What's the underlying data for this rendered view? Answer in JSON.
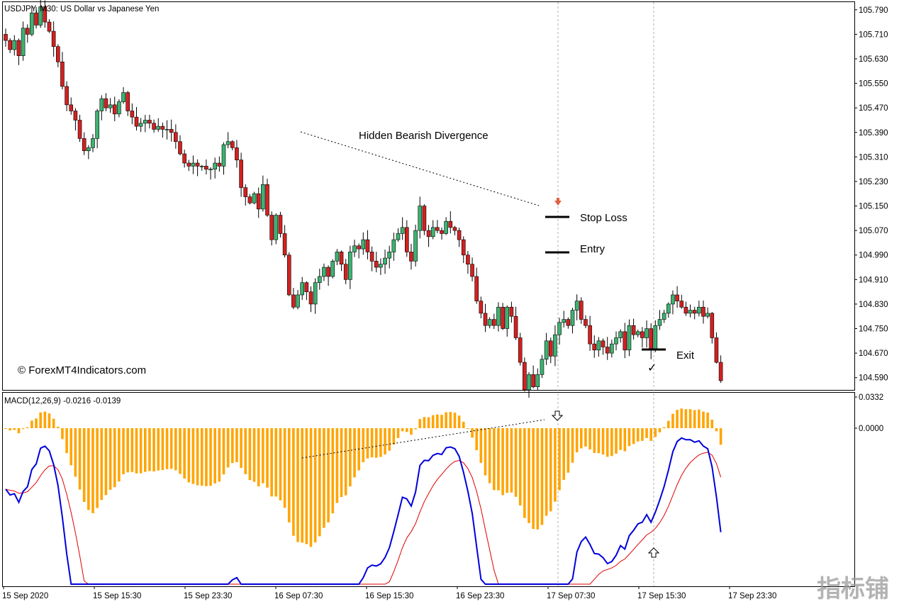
{
  "window_title": "USDJPY, M30:  US Dollar vs Japanese Yen",
  "copyright": "© ForexMT4Indicators.com",
  "watermark": "指标铺",
  "annotations": {
    "divergence": "Hidden Bearish Divergence",
    "stop_loss": "Stop Loss",
    "entry": "Entry",
    "exit": "Exit"
  },
  "colors": {
    "bull_candle": "#3cb371",
    "bear_candle": "#d42020",
    "macd_line": "#0000dd",
    "signal_line": "#e00000",
    "histogram": "#ffa500",
    "arrow_down": "#e06040"
  },
  "chart_data": [
    {
      "type": "candlestick",
      "title": "USDJPY, M30:  US Dollar vs Japanese Yen",
      "y_ticks": [
        "105.790",
        "105.710",
        "105.630",
        "105.550",
        "105.470",
        "105.390",
        "105.310",
        "105.230",
        "105.150",
        "105.070",
        "104.990",
        "104.910",
        "104.830",
        "104.750",
        "104.670",
        "104.590"
      ],
      "ylim": [
        104.55,
        105.815
      ],
      "x_ticks": [
        "15 Sep 2020",
        "15 Sep 15:30",
        "15 Sep 23:30",
        "16 Sep 07:30",
        "16 Sep 15:30",
        "16 Sep 23:30",
        "17 Sep 07:30",
        "17 Sep 15:30",
        "17 Sep 23:30"
      ],
      "closes": [
        105.69,
        105.66,
        105.69,
        105.64,
        105.73,
        105.71,
        105.78,
        105.74,
        105.8,
        105.75,
        105.72,
        105.67,
        105.62,
        105.54,
        105.48,
        105.46,
        105.43,
        105.37,
        105.33,
        105.34,
        105.37,
        105.46,
        105.5,
        105.47,
        105.48,
        105.45,
        105.49,
        105.52,
        105.46,
        105.44,
        105.41,
        105.42,
        105.43,
        105.42,
        105.4,
        105.41,
        105.4,
        105.4,
        105.39,
        105.36,
        105.32,
        105.29,
        105.28,
        105.29,
        105.28,
        105.28,
        105.27,
        105.27,
        105.29,
        105.28,
        105.35,
        105.36,
        105.34,
        105.3,
        105.21,
        105.18,
        105.16,
        105.19,
        105.14,
        105.22,
        105.12,
        105.04,
        105.12,
        105.06,
        104.99,
        104.86,
        104.82,
        104.86,
        104.9,
        104.87,
        104.83,
        104.9,
        104.92,
        104.95,
        104.92,
        104.97,
        105.0,
        104.96,
        104.91,
        105.0,
        105.02,
        105.01,
        105.04,
        105.0,
        104.97,
        104.95,
        104.96,
        104.98,
        105.0,
        105.04,
        105.06,
        105.08,
        105.0,
        104.97,
        105.07,
        105.15,
        105.07,
        105.05,
        105.08,
        105.07,
        105.06,
        105.1,
        105.08,
        105.07,
        105.04,
        104.99,
        104.96,
        104.92,
        104.84,
        104.8,
        104.76,
        104.78,
        104.76,
        104.82,
        104.75,
        104.82,
        104.79,
        104.72,
        104.64,
        104.55,
        104.6,
        104.56,
        104.6,
        104.65,
        104.71,
        104.66,
        104.73,
        104.77,
        104.78,
        104.76,
        104.81,
        104.84,
        104.78,
        104.76,
        104.7,
        104.68,
        104.71,
        104.69,
        104.67,
        104.7,
        104.72,
        104.74,
        104.68,
        104.76,
        104.73,
        104.74,
        104.72,
        104.75,
        104.68,
        104.76,
        104.78,
        104.8,
        104.83,
        104.86,
        104.84,
        104.82,
        104.8,
        104.81,
        104.8,
        104.82,
        104.79,
        104.8,
        104.72,
        104.64,
        104.58
      ]
    },
    {
      "type": "line",
      "name": "MACD(12,26,9) -0.0216 -0.0139",
      "y_ticks": [
        "0.0332",
        "0.0000"
      ],
      "series": [
        {
          "name": "MACD",
          "role": "line"
        },
        {
          "name": "Signal",
          "role": "line"
        },
        {
          "name": "Histogram",
          "role": "bar"
        }
      ]
    }
  ]
}
